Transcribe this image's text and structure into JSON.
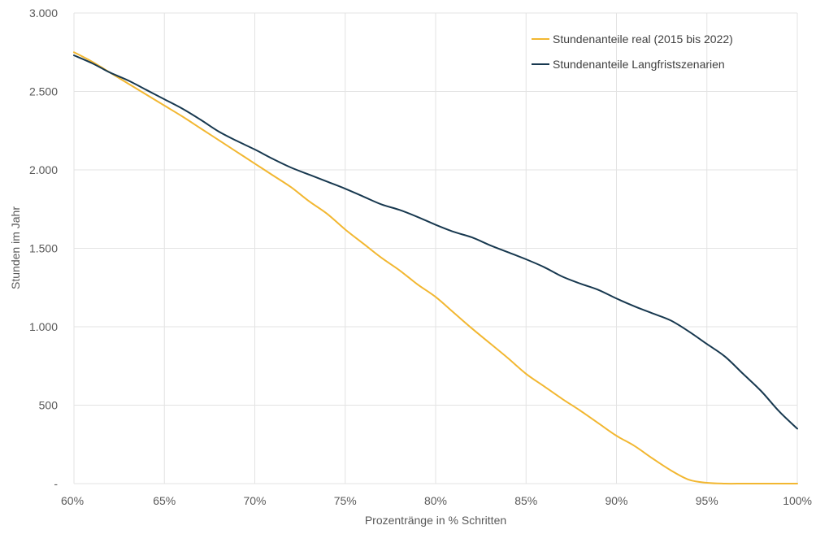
{
  "chart_data": {
    "type": "line",
    "xlabel": "Prozentränge in % Schritten",
    "ylabel": "Stunden im Jahr",
    "xlim": [
      60,
      100
    ],
    "ylim": [
      0,
      3000
    ],
    "grid": true,
    "legend_position": "top-right",
    "x_ticks": [
      60,
      65,
      70,
      75,
      80,
      85,
      90,
      95,
      100
    ],
    "x_tick_labels": [
      "60%",
      "65%",
      "70%",
      "75%",
      "80%",
      "85%",
      "90%",
      "95%",
      "100%"
    ],
    "y_ticks": [
      0,
      500,
      1000,
      1500,
      2000,
      2500,
      3000
    ],
    "y_tick_labels": [
      "-",
      "500",
      "1.000",
      "1.500",
      "2.000",
      "2.500",
      "3.000"
    ],
    "series": [
      {
        "name": "Stundenanteile real (2015 bis 2022)",
        "color": "#f2b731",
        "x": [
          60,
          61,
          62,
          63,
          64,
          65,
          66,
          67,
          68,
          69,
          70,
          71,
          72,
          73,
          74,
          75,
          76,
          77,
          78,
          79,
          80,
          81,
          82,
          83,
          84,
          85,
          86,
          87,
          88,
          89,
          90,
          91,
          92,
          93,
          94,
          95,
          96,
          97,
          98,
          99,
          100
        ],
        "values": [
          2750,
          2690,
          2620,
          2550,
          2480,
          2410,
          2340,
          2265,
          2190,
          2115,
          2040,
          1965,
          1890,
          1800,
          1720,
          1620,
          1530,
          1440,
          1360,
          1270,
          1190,
          1090,
          990,
          895,
          800,
          700,
          620,
          540,
          465,
          385,
          305,
          240,
          160,
          85,
          25,
          5,
          0,
          0,
          0,
          0,
          0
        ]
      },
      {
        "name": "Stundenanteile Langfristszenarien",
        "color": "#17384f",
        "x": [
          60,
          61,
          62,
          63,
          64,
          65,
          66,
          67,
          68,
          69,
          70,
          71,
          72,
          73,
          74,
          75,
          76,
          77,
          78,
          79,
          80,
          81,
          82,
          83,
          84,
          85,
          86,
          87,
          88,
          89,
          90,
          91,
          92,
          93,
          94,
          95,
          96,
          97,
          98,
          99,
          100
        ],
        "values": [
          2730,
          2680,
          2620,
          2570,
          2510,
          2450,
          2390,
          2320,
          2245,
          2185,
          2130,
          2070,
          2015,
          1970,
          1925,
          1880,
          1830,
          1780,
          1745,
          1700,
          1650,
          1605,
          1570,
          1520,
          1475,
          1430,
          1380,
          1320,
          1275,
          1235,
          1180,
          1130,
          1085,
          1040,
          970,
          890,
          810,
          700,
          590,
          460,
          350
        ]
      }
    ]
  }
}
